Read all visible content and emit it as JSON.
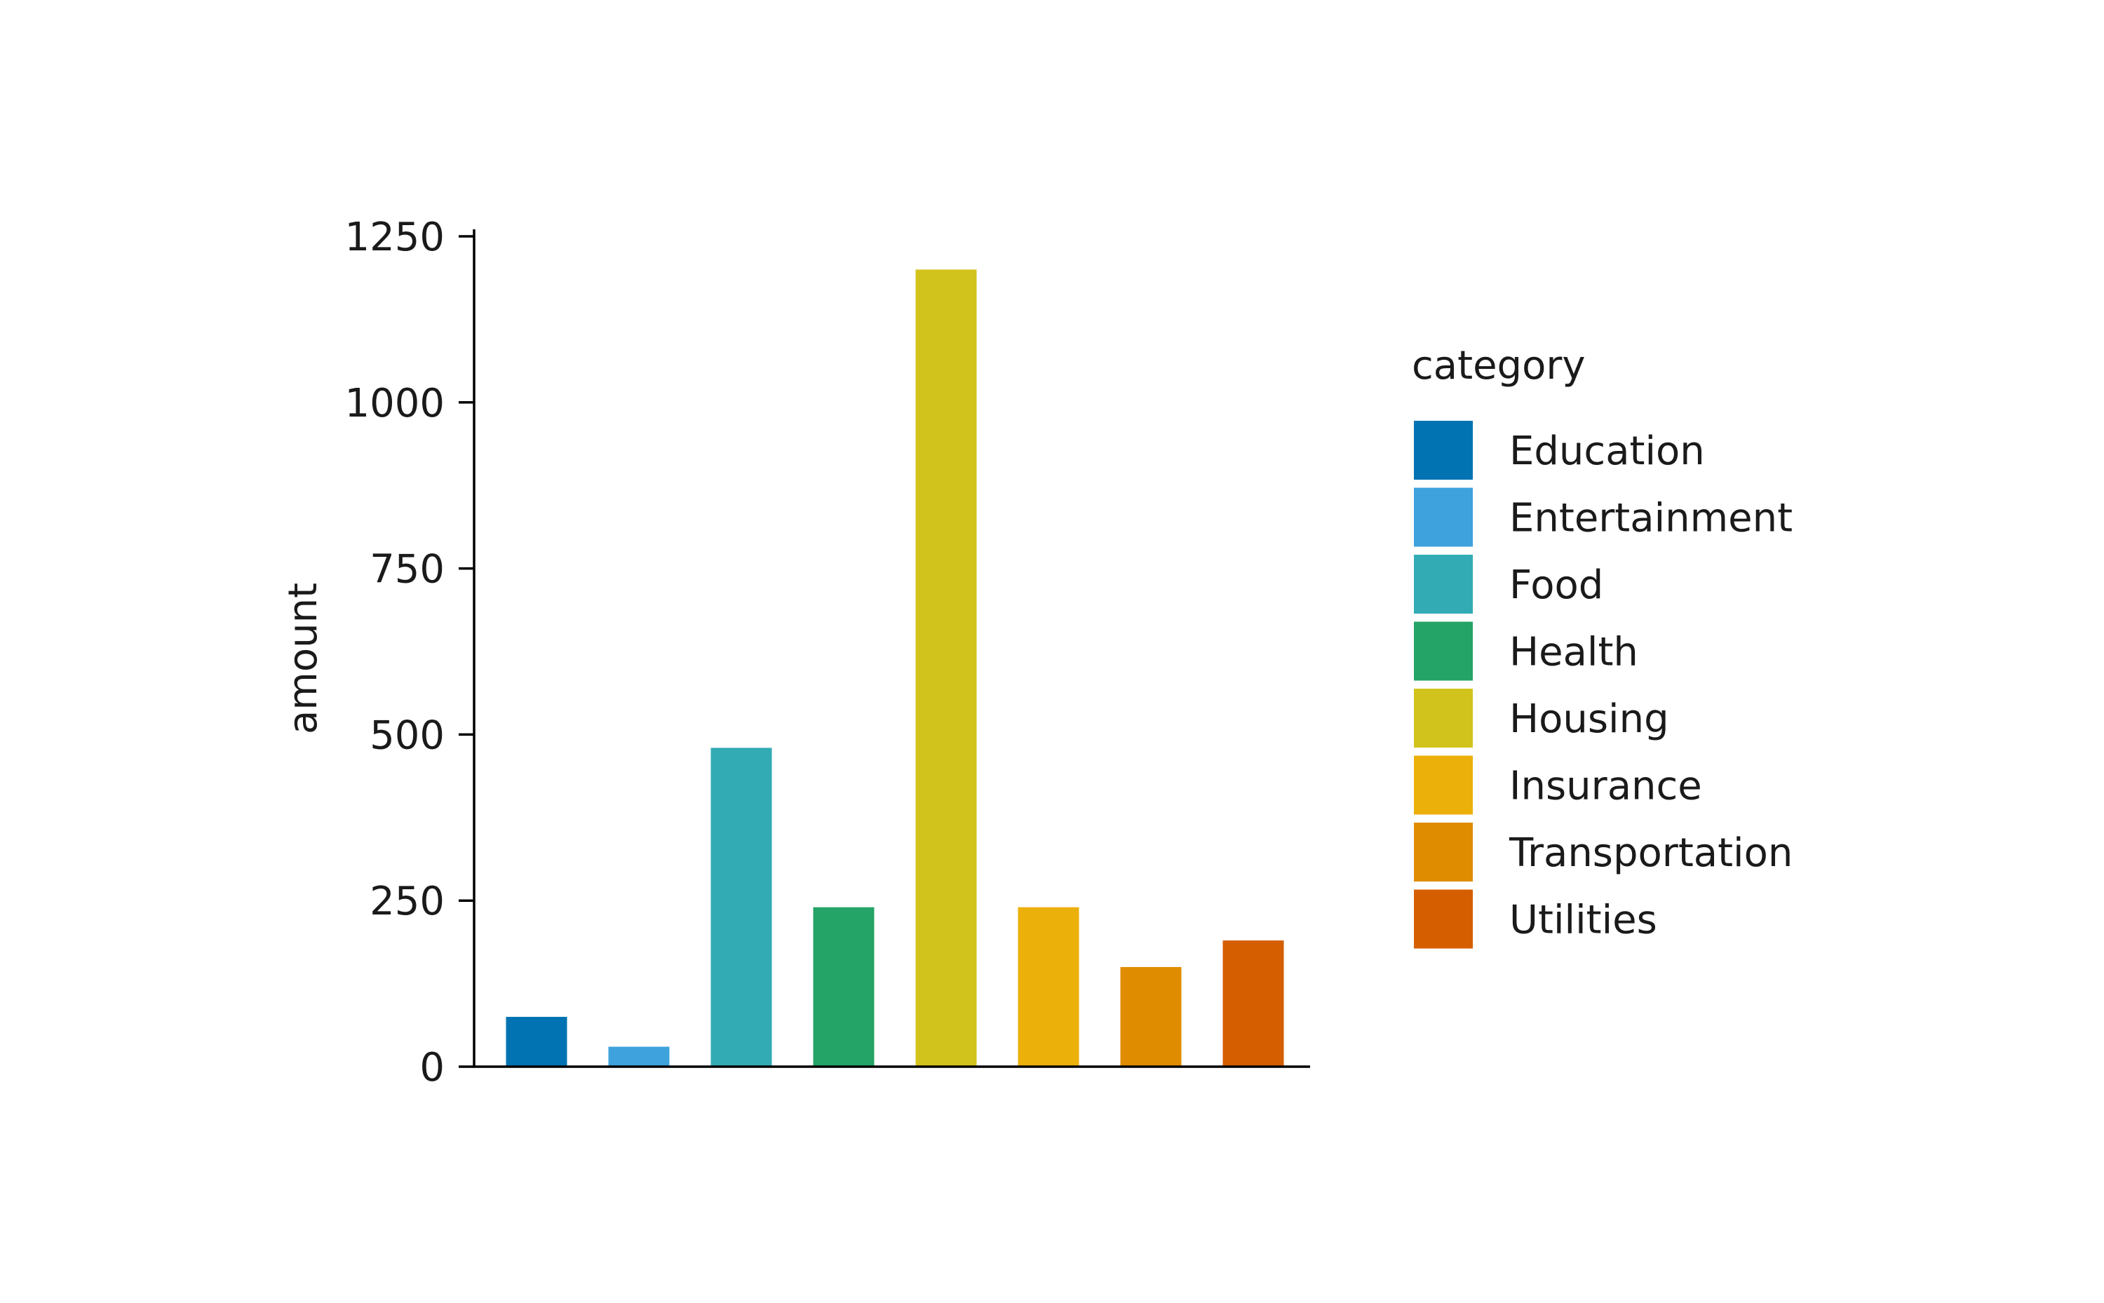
{
  "chart_data": {
    "type": "bar",
    "title": "",
    "xlabel": "",
    "ylabel": "amount",
    "ylim": [
      0,
      1250
    ],
    "yticks": [
      0,
      250,
      500,
      750,
      1000,
      1250
    ],
    "grid": false,
    "legend": {
      "title": "category",
      "placement": "right"
    },
    "categories": [
      "Education",
      "Entertainment",
      "Food",
      "Health",
      "Housing",
      "Insurance",
      "Transportation",
      "Utilities"
    ],
    "values": [
      75,
      30,
      480,
      240,
      1200,
      240,
      150,
      190
    ],
    "colors": [
      "#0173b2",
      "#3ea2dc",
      "#32abb5",
      "#24a467",
      "#d2c31c",
      "#ecb00b",
      "#e08c00",
      "#d55e00"
    ]
  }
}
